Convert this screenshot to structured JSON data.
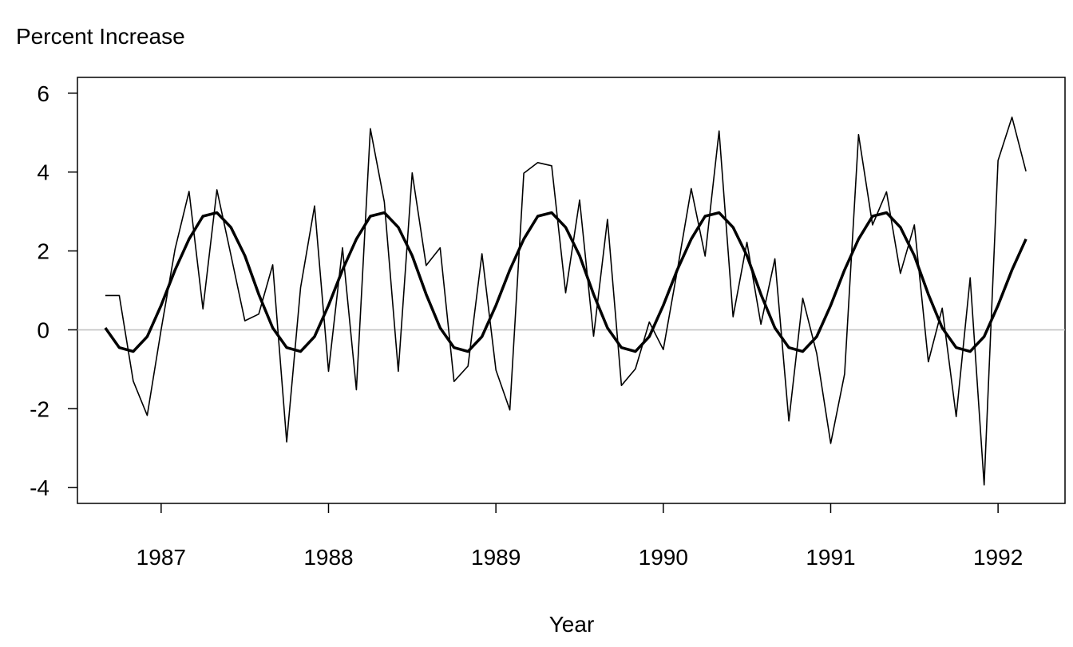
{
  "chart_data": {
    "type": "line",
    "title": "",
    "ylabel": "Percent Increase",
    "xlabel": "Year",
    "xlim": [
      1986.5,
      1992.4
    ],
    "ylim": [
      -4.4,
      6.4
    ],
    "x_ticks": [
      1987,
      1988,
      1989,
      1990,
      1991,
      1992
    ],
    "x_tick_labels": [
      "1987",
      "1988",
      "1989",
      "1990",
      "1991",
      "1992"
    ],
    "y_ticks": [
      -4,
      -2,
      0,
      2,
      4,
      6
    ],
    "y_tick_labels": [
      "-4",
      "-2",
      "0",
      "2",
      "4",
      "6"
    ],
    "reference_line": {
      "y": 0,
      "color": "#bebebe"
    },
    "grid": false,
    "start": [
      1986,
      9
    ],
    "frequency": 12,
    "series": [
      {
        "style": "thin",
        "color": "#000000",
        "values": [
          0.87,
          0.87,
          -1.3,
          -2.17,
          0.0,
          2.05,
          3.51,
          0.53,
          3.55,
          1.9,
          0.23,
          0.4,
          1.65,
          -2.84,
          1.07,
          3.14,
          -1.05,
          2.08,
          -1.52,
          5.1,
          3.24,
          -1.05,
          3.98,
          1.63,
          2.08,
          -1.31,
          -0.92,
          1.93,
          -1.02,
          -2.03,
          3.97,
          4.24,
          4.16,
          0.94,
          3.29,
          -0.16,
          2.8,
          -1.41,
          -0.99,
          0.2,
          -0.5,
          1.5,
          3.58,
          1.87,
          5.04,
          0.33,
          2.22,
          0.14,
          1.8,
          -2.31,
          0.8,
          -0.6,
          -2.88,
          -1.12,
          4.95,
          2.66,
          3.5,
          1.43,
          2.66,
          -0.81,
          0.55,
          -2.2,
          1.32,
          -3.93,
          4.29,
          5.39,
          4.02
        ]
      },
      {
        "style": "thick",
        "color": "#000000",
        "values": [
          0.05,
          -0.45,
          -0.55,
          -0.17,
          0.62,
          1.52,
          2.3,
          2.88,
          2.97,
          2.6,
          1.88,
          0.9,
          0.05,
          -0.45,
          -0.55,
          -0.17,
          0.62,
          1.52,
          2.3,
          2.88,
          2.97,
          2.6,
          1.88,
          0.9,
          0.05,
          -0.45,
          -0.55,
          -0.17,
          0.62,
          1.52,
          2.3,
          2.88,
          2.97,
          2.6,
          1.88,
          0.9,
          0.05,
          -0.45,
          -0.55,
          -0.17,
          0.62,
          1.52,
          2.3,
          2.88,
          2.97,
          2.6,
          1.88,
          0.9,
          0.05,
          -0.45,
          -0.55,
          -0.17,
          0.62,
          1.52,
          2.3,
          2.88,
          2.97,
          2.6,
          1.88,
          0.9,
          0.05,
          -0.45,
          -0.55,
          -0.17,
          0.62,
          1.52,
          2.3
        ]
      }
    ]
  }
}
